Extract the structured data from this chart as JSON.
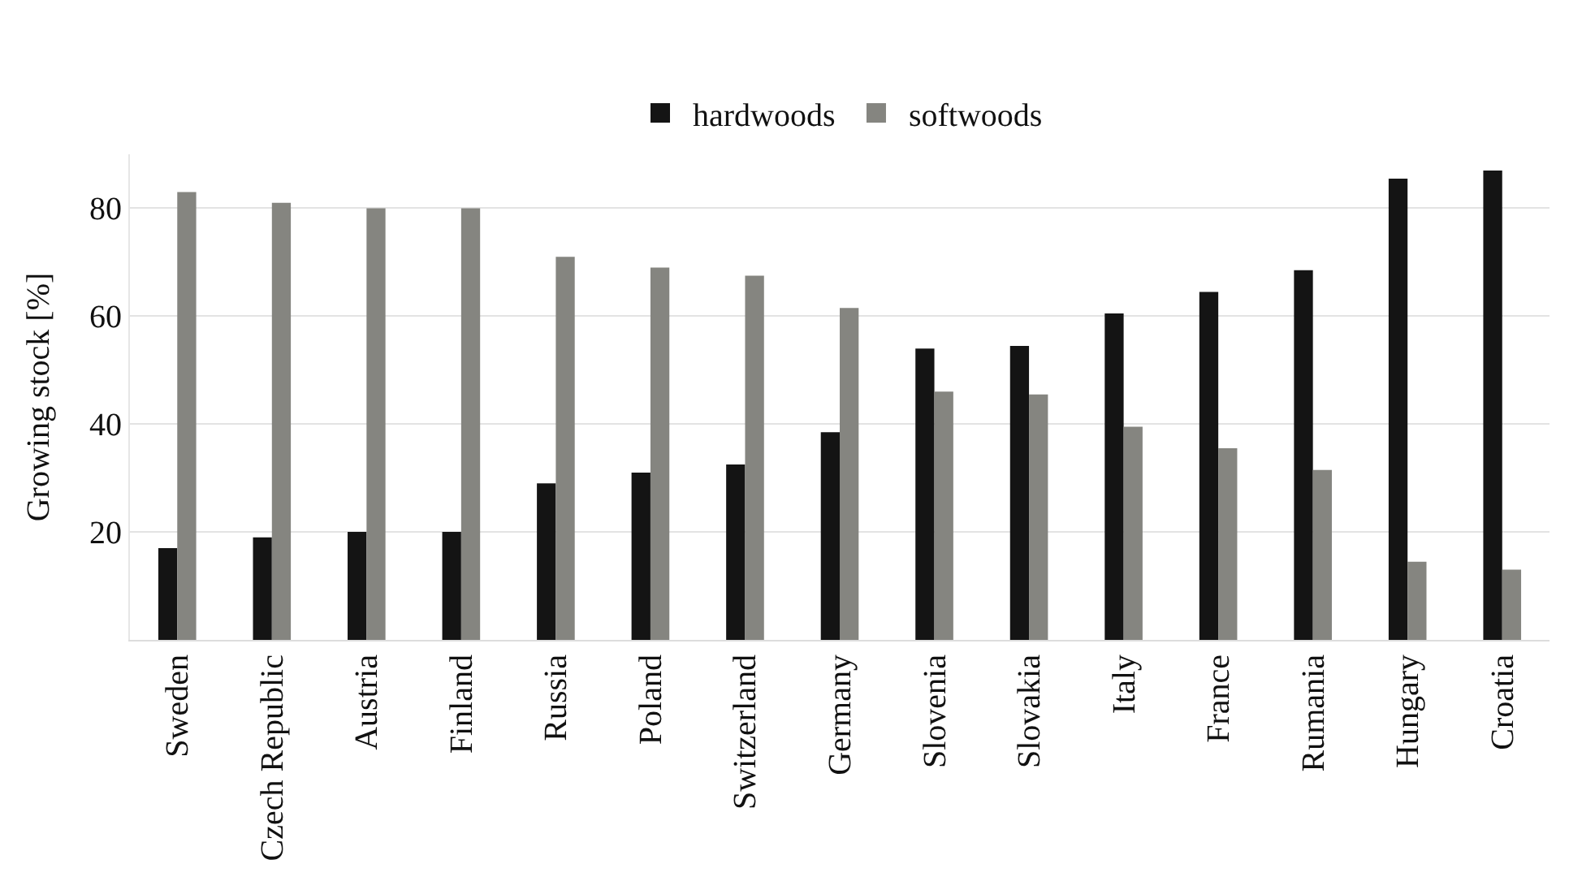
{
  "chart_data": {
    "type": "bar",
    "ylabel": "Growing stock [%]",
    "categories": [
      "Sweden",
      "Czech Republic",
      "Austria",
      "Finland",
      "Russia",
      "Poland",
      "Switzerland",
      "Germany",
      "Slovenia",
      "Slovakia",
      "Italy",
      "France",
      "Rumania",
      "Hungary",
      "Croatia"
    ],
    "series": [
      {
        "name": "hardwoods",
        "color": "#141414",
        "values": [
          17,
          19,
          20,
          20,
          29,
          31,
          32.5,
          38.5,
          54,
          54.5,
          60.5,
          64.5,
          68.5,
          85.5,
          87
        ]
      },
      {
        "name": "softwoods",
        "color": "#858580",
        "values": [
          83,
          81,
          80,
          80,
          71,
          69,
          67.5,
          61.5,
          46,
          45.5,
          39.5,
          35.5,
          31.5,
          14.5,
          13
        ]
      }
    ],
    "ylim": [
      0,
      90
    ],
    "yticks": [
      {
        "value": 0,
        "label": null
      },
      20,
      40,
      60,
      80
    ],
    "grid": "y",
    "legend": "top"
  }
}
